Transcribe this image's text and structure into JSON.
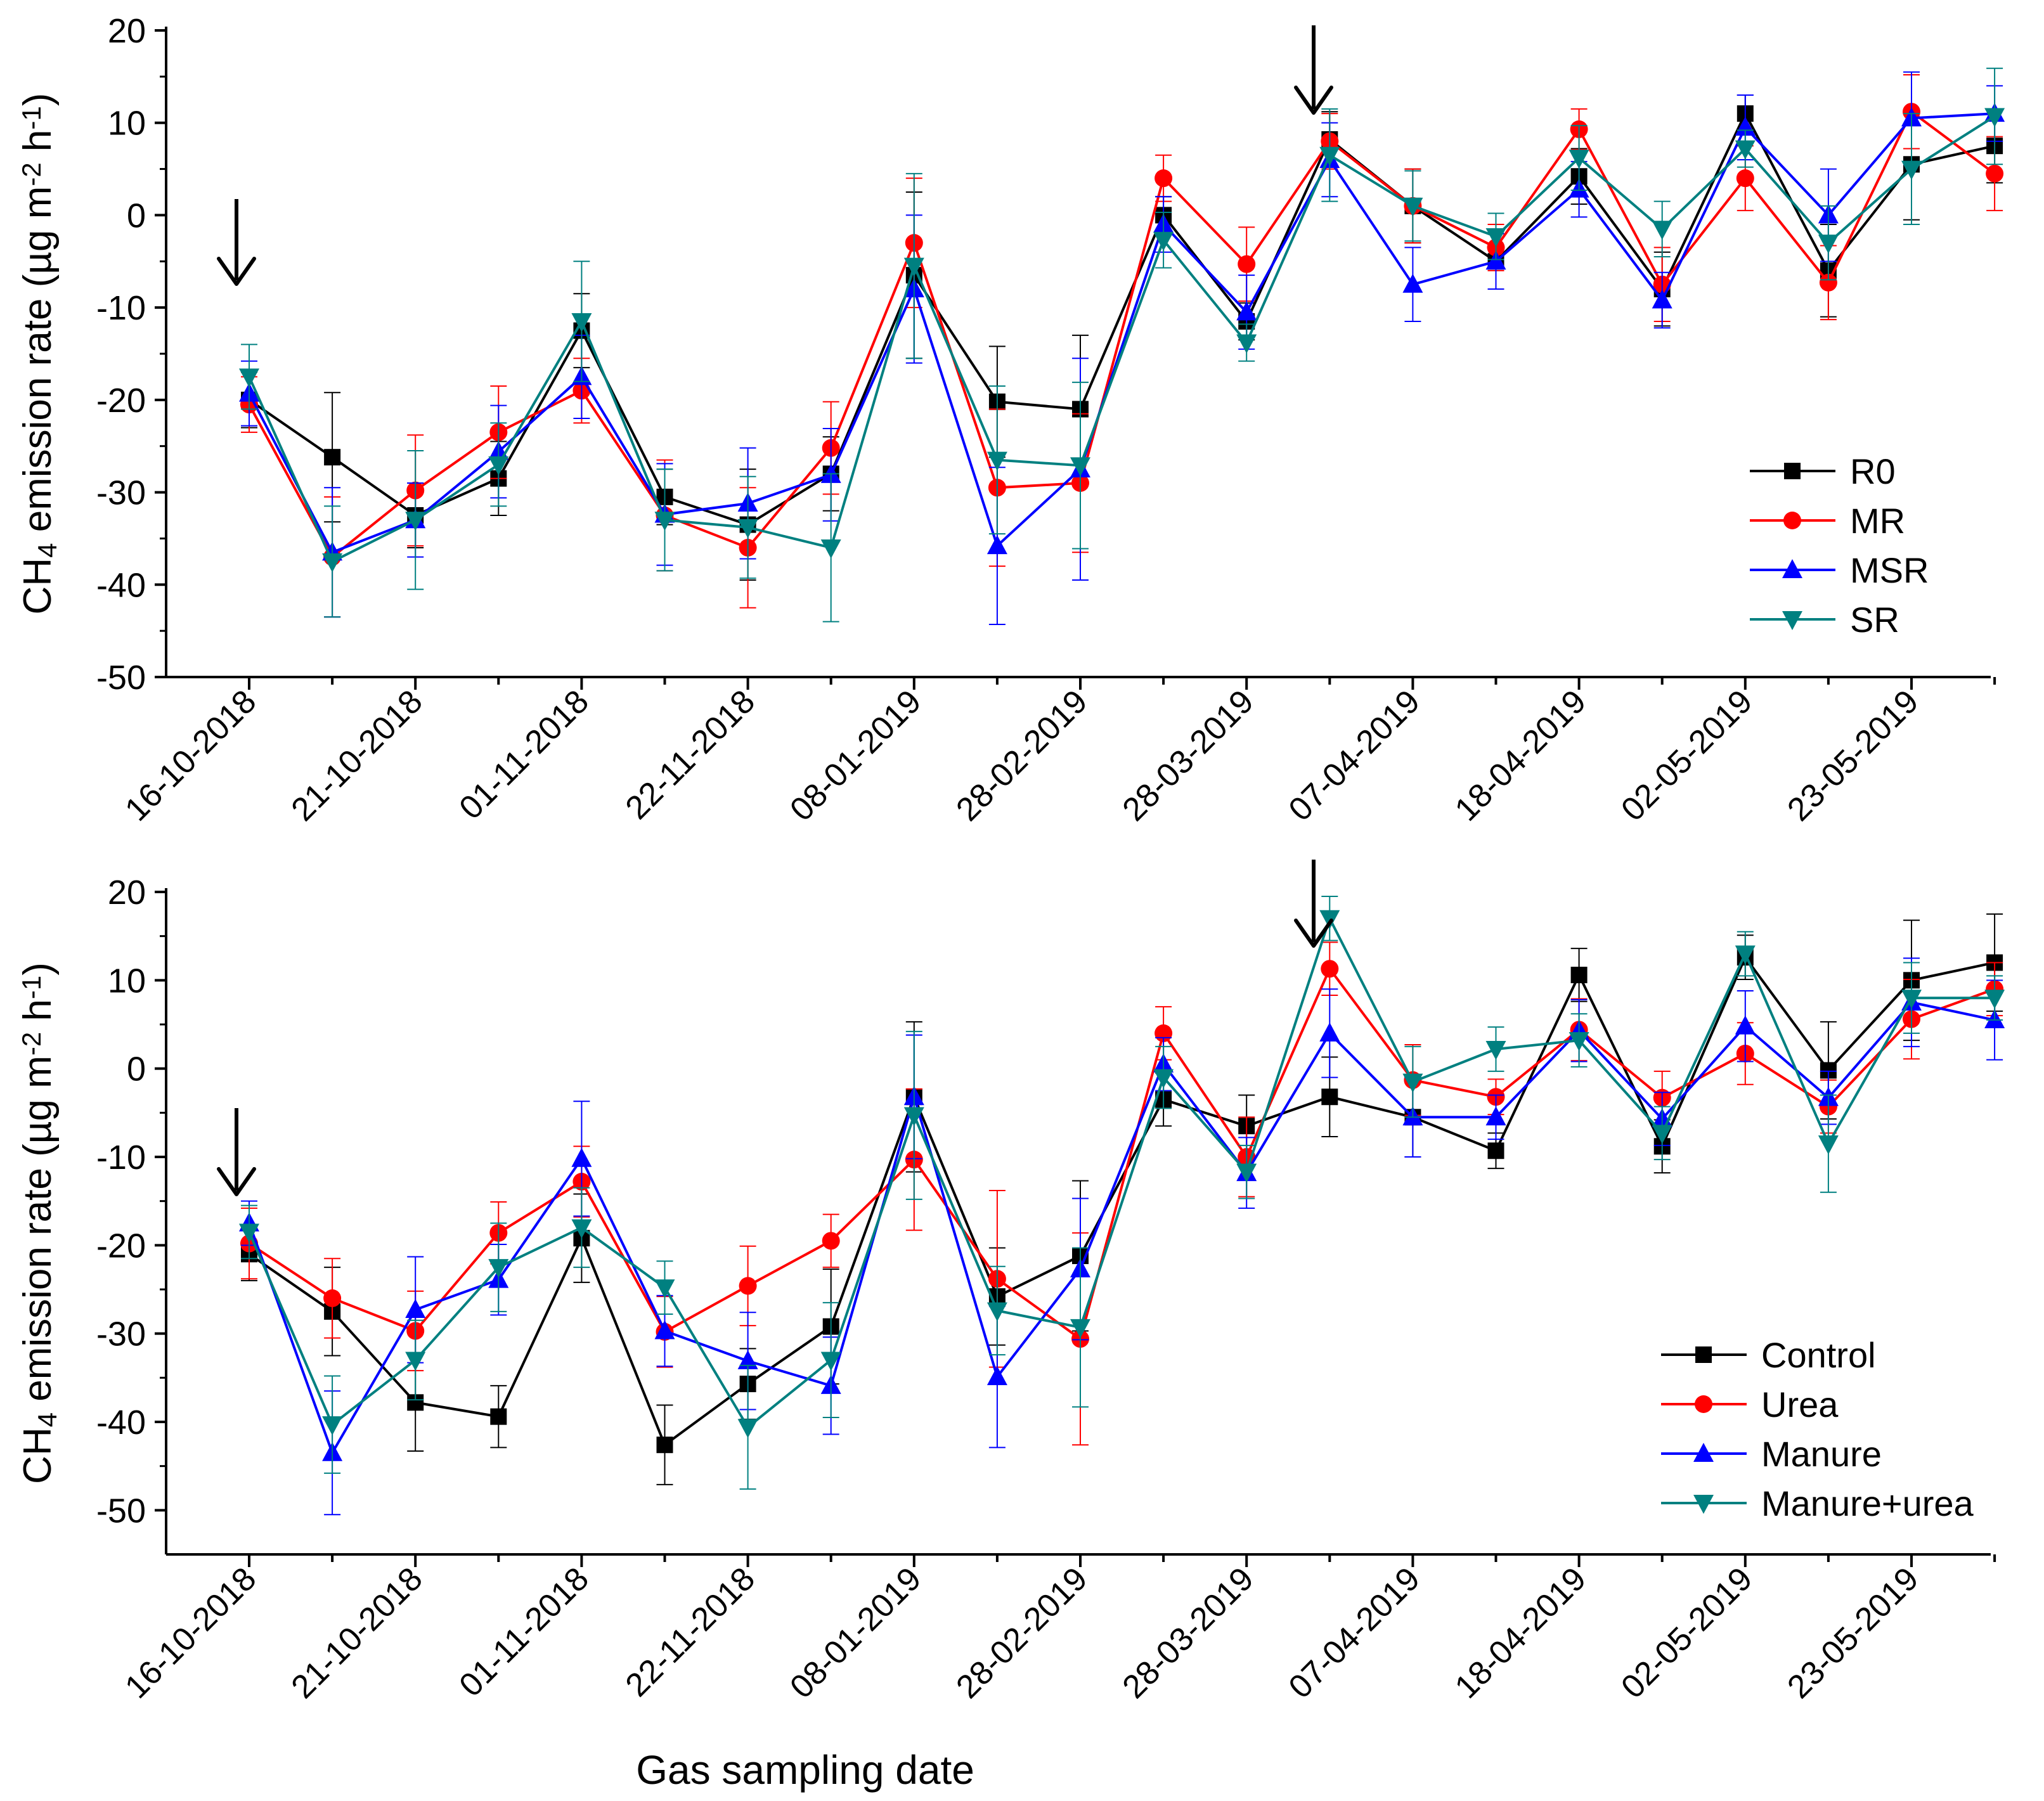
{
  "chart_data": [
    {
      "type": "line",
      "panel": "top",
      "ylabel_main": "CH",
      "ylabel_sub": "4",
      "ylabel_rest": " emission rate (µg m",
      "ylabel_sup1": "-2",
      "ylabel_mid": " h",
      "ylabel_sup2": "-1",
      "ylabel_end": ")",
      "xlabel": "",
      "ylim": [
        -50,
        20
      ],
      "yticks": [
        -50,
        -40,
        -30,
        -20,
        -10,
        0,
        10,
        20
      ],
      "x_labels": [
        "16-10-2018",
        "21-10-2018",
        "01-11-2018",
        "22-11-2018",
        "08-01-2019",
        "28-02-2019",
        "28-03-2019",
        "07-04-2019",
        "18-04-2019",
        "02-05-2019",
        "23-05-2019"
      ],
      "arrows_at_index": [
        0,
        13
      ],
      "series": [
        {
          "name": "R0",
          "color": "#000000",
          "marker": "square",
          "values": [
            -20,
            -26.2,
            -32.5,
            -28.5,
            -12.5,
            -30.5,
            -33.5,
            -28,
            -6.5,
            -20.2,
            -21,
            0,
            -11.5,
            8.2,
            1,
            -5,
            4.2,
            -8,
            11,
            -6,
            5.5,
            7.5
          ],
          "err": [
            3,
            7,
            3.5,
            4,
            4,
            3,
            6,
            4,
            9,
            6,
            8,
            2,
            2,
            3,
            4,
            3,
            3,
            4,
            2,
            5,
            6,
            4
          ]
        },
        {
          "name": "MR",
          "color": "#ff0000",
          "marker": "circle",
          "values": [
            -20.5,
            -37,
            -29.8,
            -23.5,
            -19,
            -32.5,
            -36,
            -25.2,
            -3,
            -29.5,
            -29,
            4,
            -5.3,
            8,
            1,
            -3.5,
            9.3,
            -7.5,
            4,
            -7.3,
            11.2,
            4.5
          ],
          "err": [
            3,
            6.5,
            6,
            5,
            3.5,
            6,
            6.5,
            5,
            7,
            8.5,
            7.5,
            2.5,
            4,
            3,
            4,
            2.5,
            2.2,
            4,
            3.5,
            4,
            4,
            4
          ]
        },
        {
          "name": "MSR",
          "color": "#0000ff",
          "marker": "triangle-up",
          "values": [
            -19.3,
            -36.5,
            -33,
            -25.6,
            -17.5,
            -32.4,
            -31.2,
            -28.1,
            -8,
            -35.8,
            -27.5,
            -1,
            -10.5,
            6,
            -7.5,
            -5,
            2.8,
            -9.2,
            9.5,
            0,
            10.5,
            11
          ],
          "err": [
            3.5,
            7,
            4,
            5,
            4.5,
            5.5,
            6,
            5,
            8,
            8.5,
            12,
            3,
            4,
            4,
            4,
            3,
            3,
            3,
            3.5,
            5,
            5,
            3
          ]
        },
        {
          "name": "SR",
          "color": "#008080",
          "marker": "triangle-down",
          "values": [
            -17.5,
            -37.5,
            -33,
            -27,
            -11.5,
            -33,
            -33.8,
            -36,
            -5.5,
            -26.5,
            -27.1,
            -2.7,
            -13.8,
            6.5,
            1,
            -2.3,
            6.2,
            -1.5,
            7.2,
            -3,
            5,
            10.7
          ],
          "err": [
            3.5,
            6,
            7.5,
            4.5,
            6.5,
            5.5,
            5.5,
            8,
            10,
            8,
            9,
            3,
            2,
            5,
            3.8,
            2.5,
            3.5,
            3,
            2,
            4,
            6,
            5.2
          ]
        }
      ]
    },
    {
      "type": "line",
      "panel": "bottom",
      "ylabel_main": "CH",
      "ylabel_sub": "4",
      "ylabel_rest": " emission rate (µg m",
      "ylabel_sup1": "-2",
      "ylabel_mid": " h",
      "ylabel_sup2": "-1",
      "ylabel_end": ")",
      "xlabel": "Gas sampling date",
      "ylim": [
        -55,
        20
      ],
      "yticks": [
        -50,
        -40,
        -30,
        -20,
        -10,
        0,
        10,
        20
      ],
      "x_labels": [
        "16-10-2018",
        "21-10-2018",
        "01-11-2018",
        "22-11-2018",
        "08-01-2019",
        "28-02-2019",
        "28-03-2019",
        "07-04-2019",
        "18-04-2019",
        "02-05-2019",
        "23-05-2019"
      ],
      "arrows_at_index": [
        0,
        13
      ],
      "series": [
        {
          "name": "Control",
          "color": "#000000",
          "marker": "square",
          "values": [
            -21,
            -27.5,
            -37.8,
            -39.4,
            -19.2,
            -42.6,
            -35.7,
            -29.2,
            -3.2,
            -25.8,
            -21.2,
            -3.5,
            -6.5,
            -3.2,
            -5.5,
            -9.3,
            10.6,
            -8.8,
            12.6,
            -0.2,
            10,
            12
          ],
          "err": [
            3,
            5,
            5.5,
            3.5,
            5,
            4.5,
            4,
            6.5,
            8.5,
            5.5,
            8.5,
            3,
            3.5,
            4.5,
            4.5,
            2,
            3,
            3,
            2.5,
            5.5,
            6.8,
            5.5
          ]
        },
        {
          "name": "Urea",
          "color": "#ff0000",
          "marker": "circle",
          "values": [
            -19.8,
            -26,
            -29.7,
            -18.6,
            -12.8,
            -29.8,
            -24.6,
            -19.5,
            -10.3,
            -23.8,
            -30.6,
            4,
            -10,
            11.3,
            -1.3,
            -3.2,
            4.4,
            -3.3,
            1.7,
            -4.3,
            5.6,
            9
          ],
          "err": [
            4,
            4.5,
            4.5,
            3.5,
            4,
            4,
            4.5,
            3,
            8,
            10,
            12,
            3,
            4.5,
            3,
            4,
            2,
            3.5,
            3,
            3.5,
            3,
            4.5,
            3
          ]
        },
        {
          "name": "Manure",
          "color": "#0000ff",
          "marker": "triangle-up",
          "values": [
            -17.5,
            -43.5,
            -27.3,
            -23.9,
            -10.2,
            -29.7,
            -33.1,
            -35.9,
            -3.2,
            -34.9,
            -22.7,
            0.5,
            -11.8,
            4,
            -5.5,
            -5.5,
            4.3,
            -5.7,
            4.8,
            -3.3,
            7.5,
            5.5
          ],
          "err": [
            2.5,
            7,
            6,
            4,
            6.5,
            4,
            5.5,
            5.5,
            7,
            8,
            8,
            3,
            4,
            5,
            4.5,
            2.5,
            3.5,
            3,
            4,
            3,
            5,
            4.5
          ]
        },
        {
          "name": "Manure+urea",
          "color": "#008080",
          "marker": "triangle-down",
          "values": [
            -18.5,
            -40.3,
            -33,
            -22.5,
            -18,
            -24.8,
            -40.6,
            -33,
            -5.3,
            -27.4,
            -29.3,
            -1,
            -11.7,
            17,
            -1.5,
            2.2,
            3.2,
            -7.3,
            13,
            -8.5,
            8,
            8
          ],
          "err": [
            3,
            5.5,
            4.5,
            5,
            4.5,
            3,
            7,
            6.5,
            9.5,
            5,
            9,
            3.5,
            3,
            2.5,
            4,
            2.5,
            3,
            3,
            2.5,
            5.5,
            4,
            2.5
          ]
        }
      ]
    }
  ]
}
